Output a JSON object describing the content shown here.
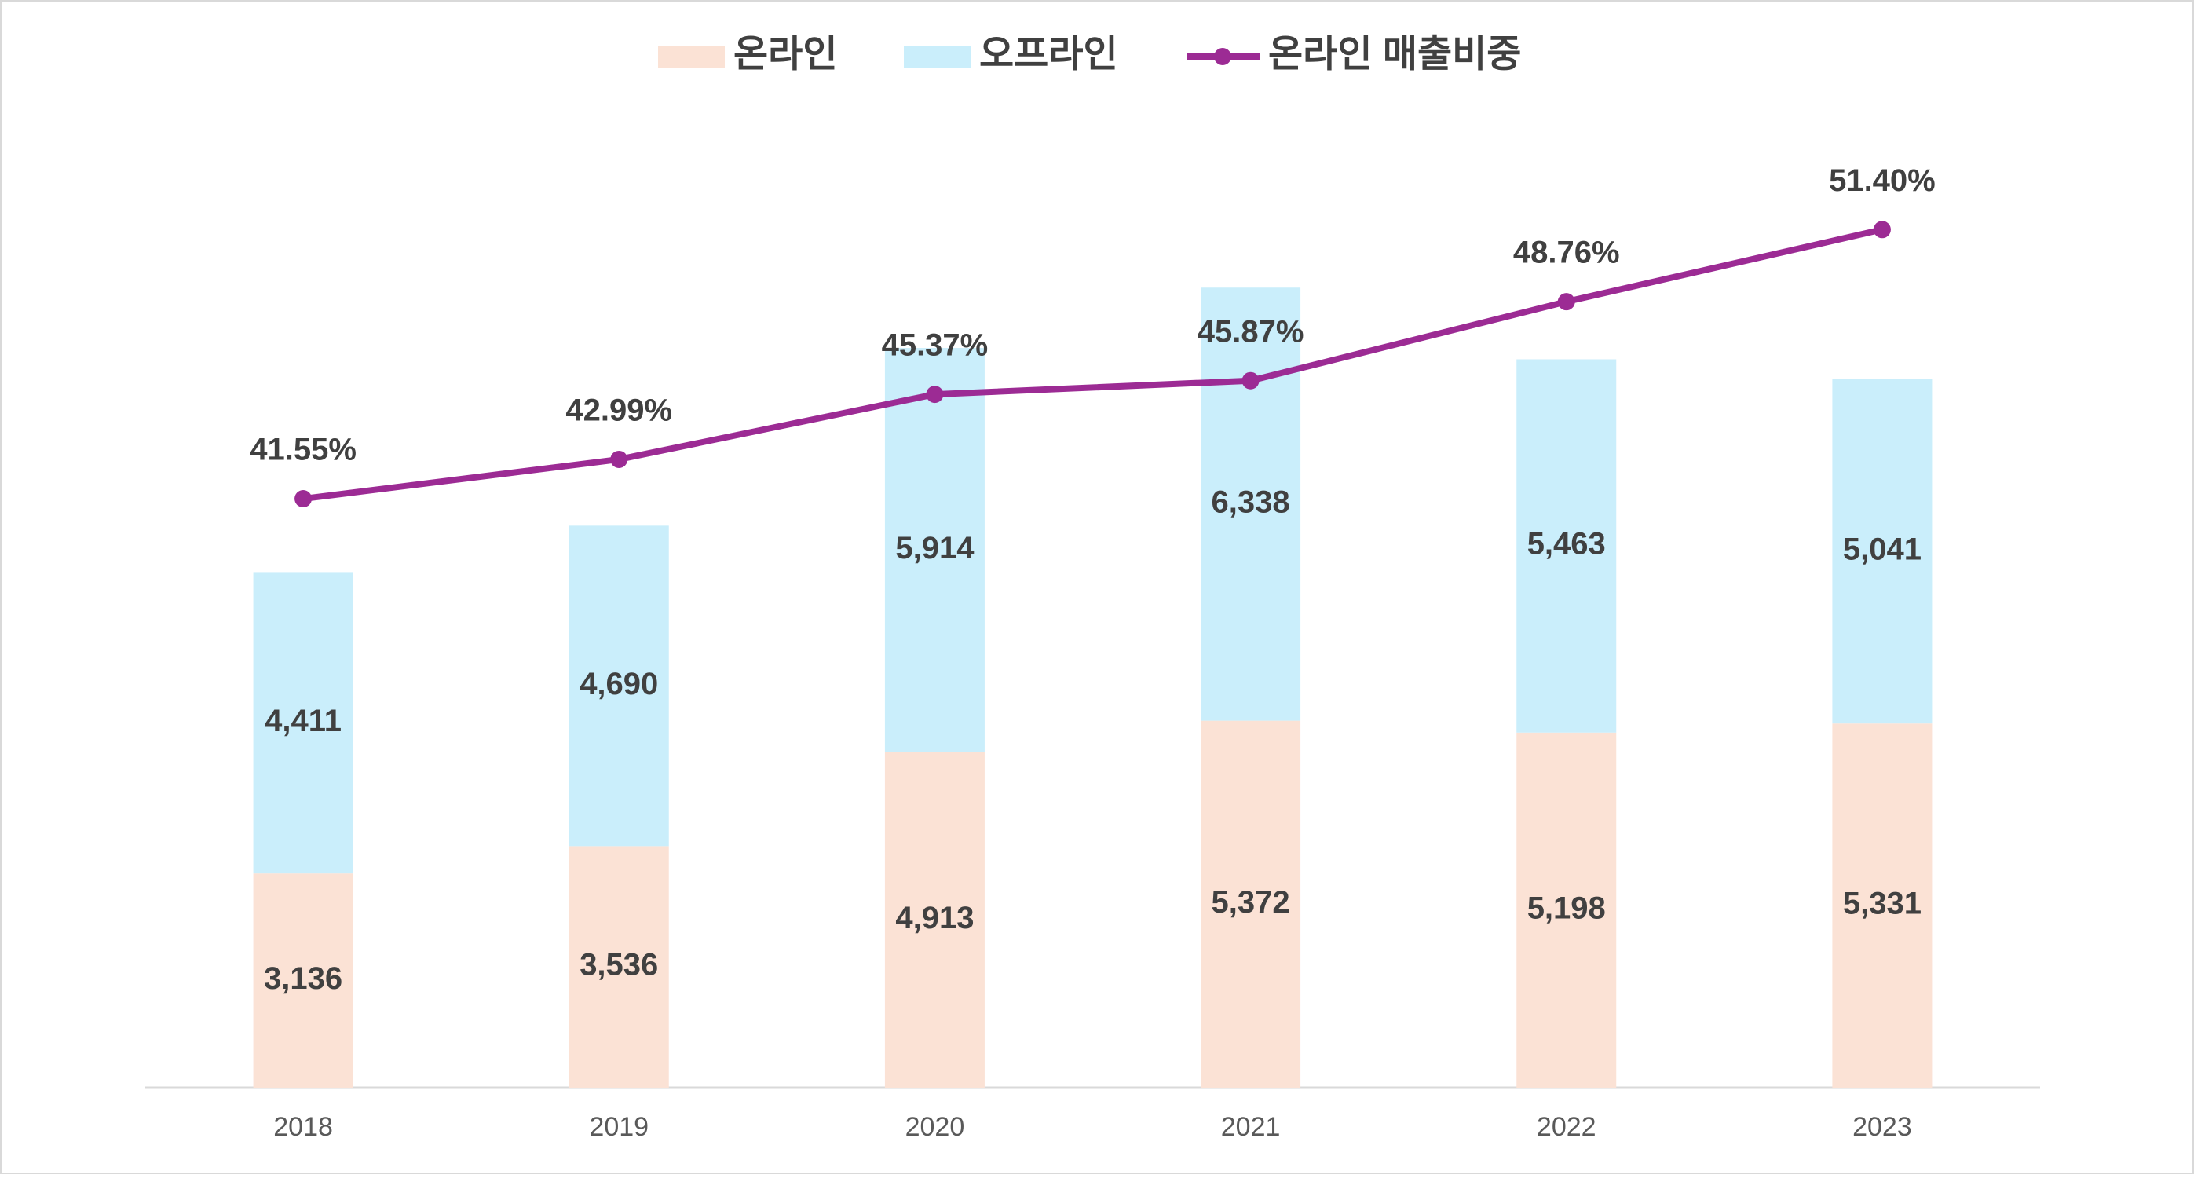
{
  "chart_data": {
    "type": "bar-line",
    "categories": [
      "2018",
      "2019",
      "2020",
      "2021",
      "2022",
      "2023"
    ],
    "series": [
      {
        "name": "온라인",
        "color": "#fbe2d5",
        "type": "bar",
        "values": [
          3136,
          3536,
          4913,
          5372,
          5198,
          5331
        ],
        "value_labels": [
          "3,136",
          "3,536",
          "4,913",
          "5,372",
          "5,198",
          "5,331"
        ]
      },
      {
        "name": "오프라인",
        "color": "#caeefb",
        "type": "bar",
        "values": [
          4411,
          4690,
          5914,
          6338,
          5463,
          5041
        ],
        "value_labels": [
          "4,411",
          "4,690",
          "5,914",
          "6,338",
          "5,463",
          "5,041"
        ]
      },
      {
        "name": "온라인 매출비중",
        "color": "#9c2b94",
        "type": "line",
        "axis": "y2",
        "values": [
          41.55,
          42.99,
          45.37,
          45.87,
          48.76,
          51.4
        ],
        "value_labels": [
          "41.55%",
          "42.99%",
          "45.37%",
          "45.87%",
          "48.76%",
          "51.40%"
        ]
      }
    ],
    "ylim": [
      0,
      14000
    ],
    "y2lim": [
      20,
      55
    ],
    "grid": false,
    "legend": "top"
  }
}
